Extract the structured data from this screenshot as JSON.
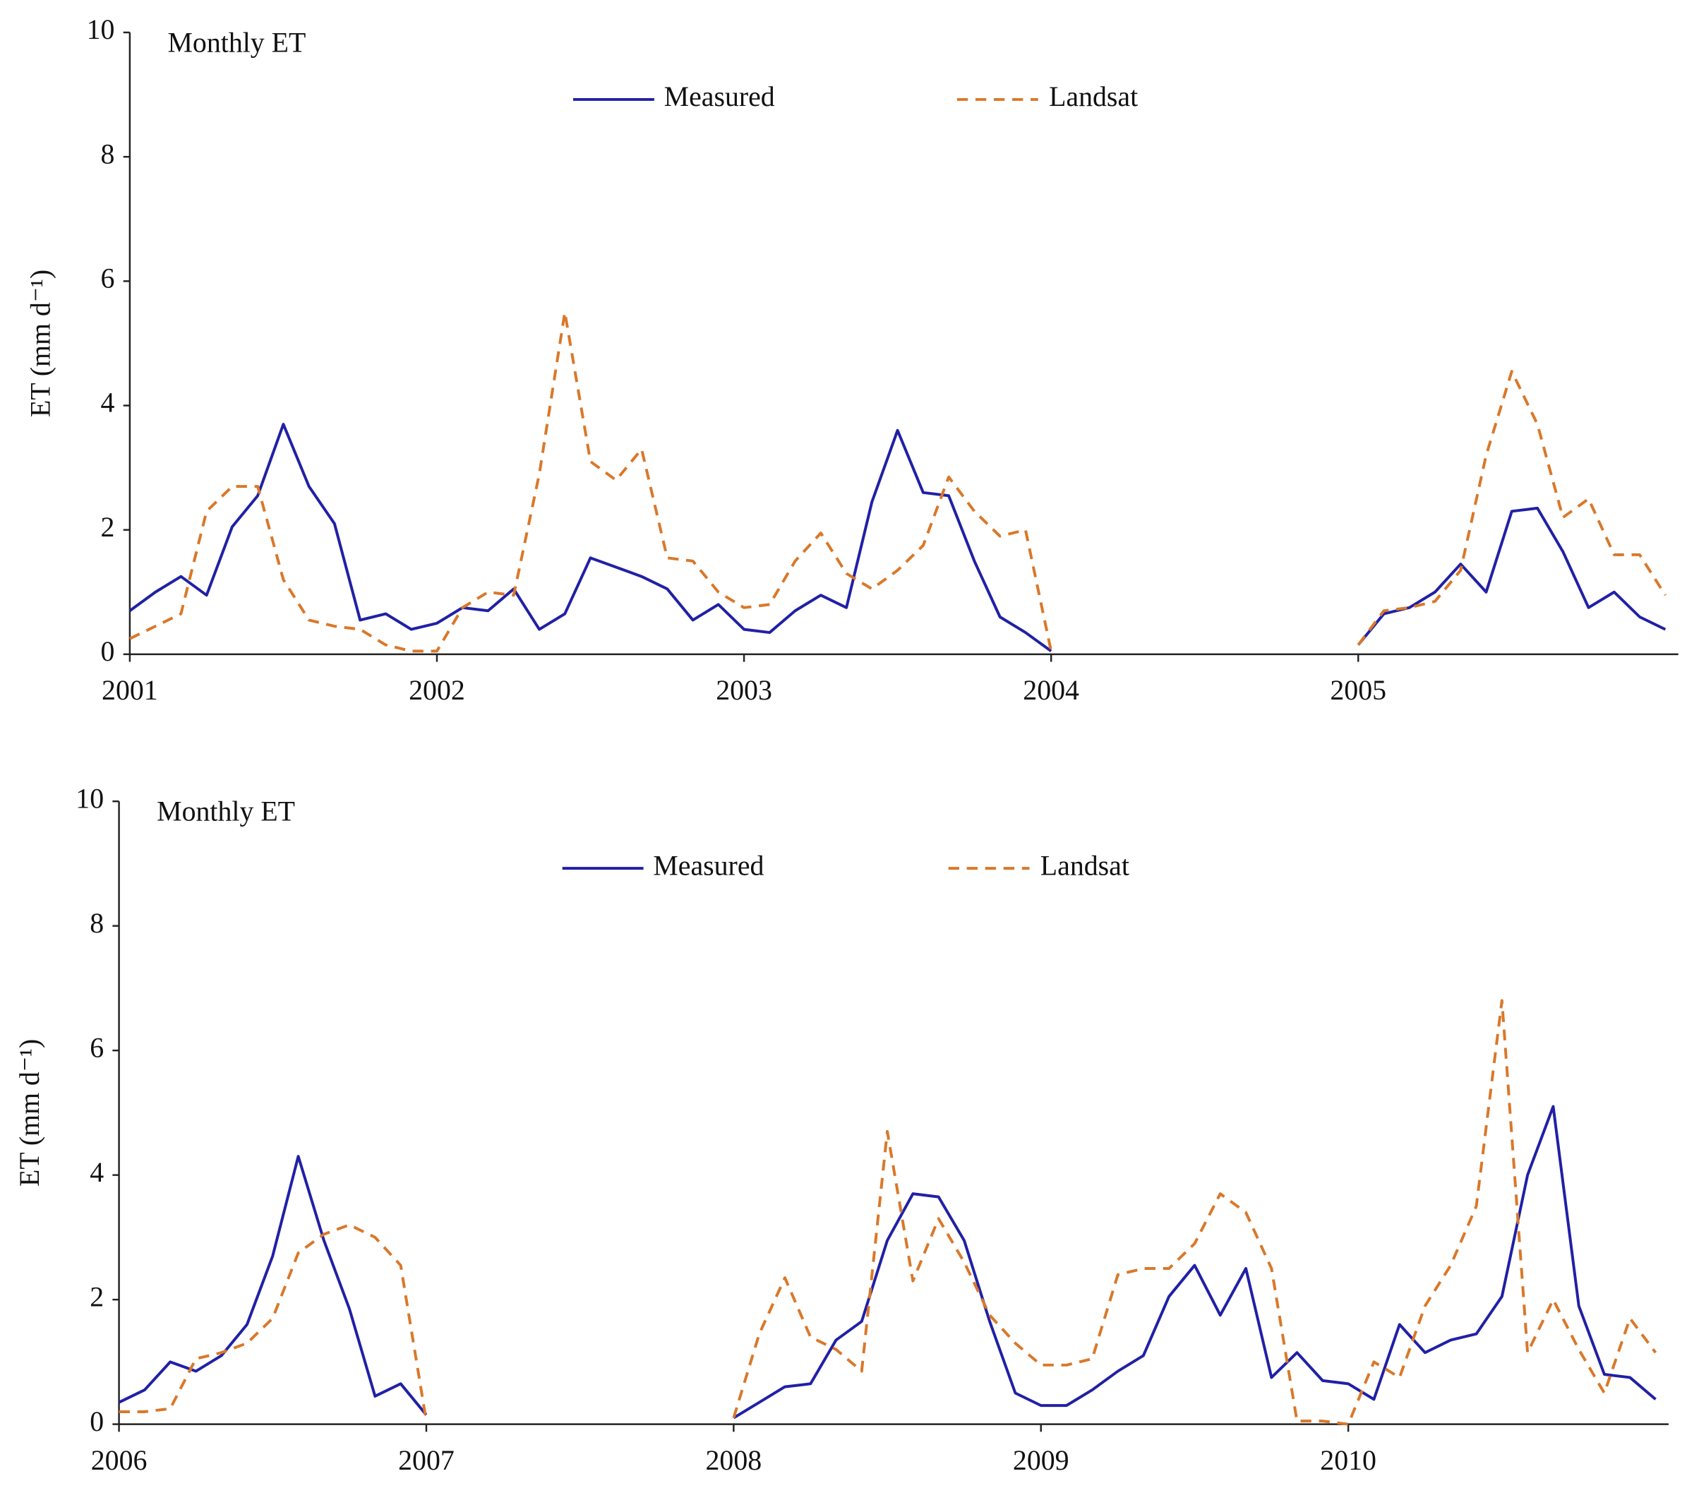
{
  "chart_data": [
    {
      "type": "line",
      "title": "Monthly ET",
      "y_label": "ET (mm d⁻¹)",
      "x": [
        0,
        1,
        2,
        3,
        4,
        5,
        6,
        7,
        8,
        9,
        10,
        11,
        12,
        13,
        14,
        15,
        16,
        17,
        18,
        19,
        20,
        21,
        22,
        23,
        24,
        25,
        26,
        27,
        28,
        29,
        30,
        31,
        32,
        33,
        34,
        35,
        36,
        37,
        38,
        39,
        40,
        41,
        42,
        43,
        44,
        45,
        46,
        47,
        48,
        49,
        50,
        51,
        52,
        53,
        54,
        55,
        56,
        57,
        58,
        59,
        60
      ],
      "xlim": [
        0,
        60
      ],
      "xticks": [
        {
          "value": 0,
          "label": "2001"
        },
        {
          "value": 12,
          "label": "2002"
        },
        {
          "value": 24,
          "label": "2003"
        },
        {
          "value": 36,
          "label": "2004"
        },
        {
          "value": 48,
          "label": "2005"
        }
      ],
      "ylim": [
        0,
        10
      ],
      "yticks": [
        0,
        2,
        4,
        6,
        8,
        10
      ],
      "grid": false,
      "series": [
        {
          "name": "Measured",
          "color": "#2020a6",
          "dash": false,
          "values": [
            0.7,
            1.0,
            1.25,
            0.95,
            2.05,
            2.55,
            3.7,
            2.7,
            2.1,
            0.55,
            0.65,
            0.4,
            0.5,
            0.75,
            0.7,
            1.05,
            0.4,
            0.65,
            1.55,
            1.4,
            1.25,
            1.05,
            0.55,
            0.8,
            0.4,
            0.35,
            0.7,
            0.95,
            0.75,
            2.45,
            3.6,
            2.6,
            2.55,
            1.5,
            0.6,
            0.35,
            0.05,
            null,
            null,
            null,
            null,
            null,
            null,
            null,
            null,
            null,
            null,
            null,
            0.15,
            0.65,
            0.75,
            1.0,
            1.45,
            1.0,
            2.3,
            2.35,
            1.65,
            0.75,
            1.0,
            0.6,
            0.4
          ]
        },
        {
          "name": "Landsat",
          "color": "#d9782a",
          "dash": true,
          "values": [
            0.25,
            0.45,
            0.65,
            2.3,
            2.7,
            2.7,
            1.2,
            0.55,
            0.45,
            0.4,
            0.15,
            0.05,
            0.05,
            0.75,
            1.0,
            0.95,
            2.9,
            5.5,
            3.1,
            2.8,
            3.3,
            1.55,
            1.5,
            1.0,
            0.75,
            0.8,
            1.5,
            1.95,
            1.3,
            1.05,
            1.35,
            1.75,
            2.85,
            2.3,
            1.9,
            2.0,
            0.05,
            null,
            null,
            null,
            null,
            null,
            null,
            null,
            null,
            null,
            null,
            null,
            0.15,
            0.7,
            0.75,
            0.85,
            1.35,
            3.2,
            4.55,
            3.7,
            2.2,
            2.5,
            1.6,
            1.6,
            0.95
          ]
        }
      ]
    },
    {
      "type": "line",
      "title": "Monthly ET",
      "y_label": "ET (mm d⁻¹)",
      "x": [
        0,
        1,
        2,
        3,
        4,
        5,
        6,
        7,
        8,
        9,
        10,
        11,
        12,
        13,
        14,
        15,
        16,
        17,
        18,
        19,
        20,
        21,
        22,
        23,
        24,
        25,
        26,
        27,
        28,
        29,
        30,
        31,
        32,
        33,
        34,
        35,
        36,
        37,
        38,
        39,
        40,
        41,
        42,
        43,
        44,
        45,
        46,
        47,
        48,
        49,
        50,
        51,
        52,
        53,
        54,
        55,
        56,
        57,
        58,
        59,
        60
      ],
      "xlim": [
        0,
        60
      ],
      "xticks": [
        {
          "value": 0,
          "label": "2006"
        },
        {
          "value": 12,
          "label": "2007"
        },
        {
          "value": 24,
          "label": "2008"
        },
        {
          "value": 36,
          "label": "2009"
        },
        {
          "value": 48,
          "label": "2010"
        }
      ],
      "ylim": [
        0,
        10
      ],
      "yticks": [
        0,
        2,
        4,
        6,
        8,
        10
      ],
      "grid": false,
      "series": [
        {
          "name": "Measured",
          "color": "#2020a6",
          "dash": false,
          "values": [
            0.35,
            0.55,
            1.0,
            0.85,
            1.1,
            1.6,
            2.7,
            4.3,
            2.95,
            1.85,
            0.45,
            0.65,
            0.15,
            null,
            null,
            null,
            null,
            null,
            null,
            null,
            null,
            null,
            null,
            null,
            0.1,
            0.35,
            0.6,
            0.65,
            1.35,
            1.65,
            2.95,
            3.7,
            3.65,
            2.95,
            1.65,
            0.5,
            0.3,
            0.3,
            0.55,
            0.85,
            1.1,
            2.05,
            2.55,
            1.75,
            2.5,
            0.75,
            1.15,
            0.7,
            0.65,
            0.4,
            1.6,
            1.15,
            1.35,
            1.45,
            2.05,
            4.0,
            5.1,
            1.9,
            0.8,
            0.75,
            0.4
          ]
        },
        {
          "name": "Landsat",
          "color": "#d9782a",
          "dash": true,
          "values": [
            0.2,
            0.2,
            0.25,
            1.05,
            1.15,
            1.3,
            1.7,
            2.75,
            3.05,
            3.2,
            3.0,
            2.55,
            0.05,
            null,
            null,
            null,
            null,
            null,
            null,
            null,
            null,
            null,
            null,
            null,
            0.1,
            1.45,
            2.35,
            1.4,
            1.2,
            0.85,
            4.7,
            2.3,
            3.3,
            2.6,
            1.75,
            1.3,
            0.95,
            0.95,
            1.05,
            2.4,
            2.5,
            2.5,
            2.9,
            3.7,
            3.4,
            2.5,
            0.05,
            0.05,
            0.0,
            1.0,
            0.75,
            1.9,
            2.55,
            3.5,
            6.8,
            1.15,
            2.0,
            1.2,
            0.5,
            1.7,
            1.15
          ]
        }
      ]
    }
  ]
}
